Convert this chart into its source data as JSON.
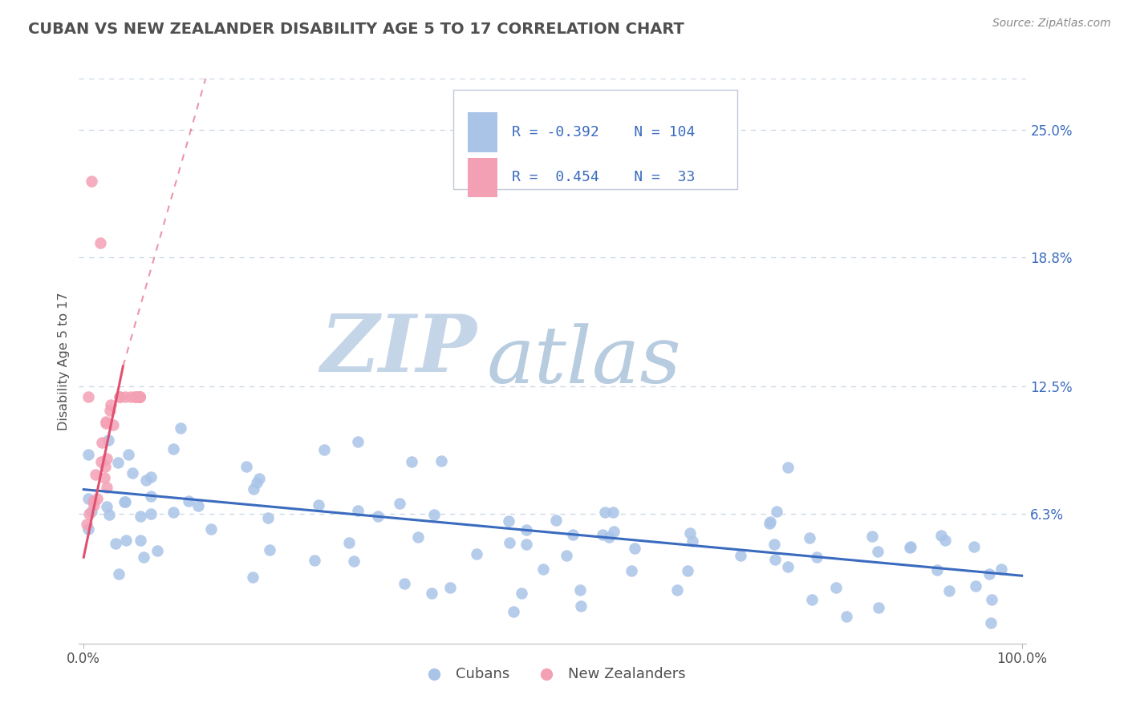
{
  "title": "CUBAN VS NEW ZEALANDER DISABILITY AGE 5 TO 17 CORRELATION CHART",
  "source_text": "Source: ZipAtlas.com",
  "ylabel": "Disability Age 5 to 17",
  "xlim": [
    -0.005,
    1.005
  ],
  "ylim": [
    0.0,
    0.275
  ],
  "ytick_vals": [
    0.063,
    0.125,
    0.188,
    0.25
  ],
  "ytick_labels": [
    "6.3%",
    "12.5%",
    "18.8%",
    "25.0%"
  ],
  "xtick_vals": [
    0.0,
    1.0
  ],
  "xtick_labels": [
    "0.0%",
    "100.0%"
  ],
  "cuban_R": -0.392,
  "cuban_N": 104,
  "nz_R": 0.454,
  "nz_N": 33,
  "cuban_color": "#aac4e8",
  "nz_color": "#f4a0b4",
  "cuban_line_color": "#3a6bbf",
  "nz_line_color": "#e05070",
  "legend_text_color": "#3a6bbf",
  "title_color": "#505050",
  "source_color": "#888888",
  "watermark_zip": "ZIP",
  "watermark_atlas": "atlas",
  "watermark_color_zip": "#c5d5e8",
  "watermark_color_atlas": "#b8cce0",
  "background_color": "#ffffff",
  "grid_color": "#c8d4e4",
  "cuban_line_y0": 0.075,
  "cuban_line_y1": 0.033,
  "nz_line_x0": 0.0,
  "nz_line_y0": 0.042,
  "nz_line_x1": 0.042,
  "nz_line_y1": 0.135,
  "nz_line_dashed_x0": 0.042,
  "nz_line_dashed_y0": 0.135,
  "nz_line_dashed_x1": 0.13,
  "nz_line_dashed_y1": 0.275
}
